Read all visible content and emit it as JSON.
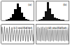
{
  "chart_data": [
    {
      "type": "histogram",
      "title": "(a)",
      "color": "#000000",
      "tick_labels": false,
      "bins": [
        0,
        1,
        2,
        3,
        4,
        5,
        6,
        7,
        8,
        9,
        10,
        11,
        12,
        13,
        14,
        15
      ],
      "values": [
        0,
        0,
        1,
        2,
        4,
        8,
        15,
        22,
        18,
        10,
        5,
        2,
        1,
        0,
        0
      ],
      "xlim": [
        0,
        15
      ],
      "ylim": [
        0,
        25
      ]
    },
    {
      "type": "histogram",
      "title": "(b)",
      "color": "#111111",
      "tick_labels": false,
      "bins": [
        0,
        1,
        2,
        3,
        4,
        5,
        6,
        7,
        8,
        9,
        10,
        11,
        12,
        13,
        14,
        15
      ],
      "values": [
        0,
        1,
        2,
        5,
        12,
        24,
        16,
        8,
        4,
        3,
        2,
        1,
        1,
        0,
        0
      ],
      "xlim": [
        0,
        15
      ],
      "ylim": [
        0,
        25
      ]
    },
    {
      "type": "line",
      "title": "(c) oscillation",
      "color": "#444444",
      "tick_labels": false,
      "x": [
        0,
        1,
        2,
        3,
        4,
        5,
        6,
        7,
        8,
        9,
        10,
        11,
        12,
        13,
        14,
        15,
        16,
        17,
        18,
        19,
        20,
        21,
        22,
        23,
        24,
        25,
        26,
        27,
        28,
        29,
        30,
        31,
        32,
        33,
        34,
        35,
        36,
        37,
        38,
        39,
        40,
        41,
        42,
        43,
        44,
        45,
        46,
        47,
        48,
        49,
        50,
        51,
        52
      ],
      "values": [
        0,
        0.9,
        0,
        -0.9,
        0,
        0.95,
        0,
        -0.85,
        0,
        0.8,
        0,
        -0.9,
        0,
        0.92,
        0,
        -0.95,
        0,
        0.85,
        0,
        -0.8,
        0,
        0.9,
        0,
        -0.9,
        0,
        0.95,
        0,
        -0.88,
        0,
        0.82,
        0,
        -0.92,
        0,
        0.9,
        0,
        -0.85,
        0,
        0.93,
        0,
        -0.9,
        0,
        0.88,
        0,
        -0.94,
        0,
        0.9,
        0,
        -0.82,
        0,
        0.95,
        0,
        -0.9,
        0
      ],
      "xlim": [
        0,
        52
      ],
      "ylim": [
        -1.2,
        1.2
      ]
    },
    {
      "type": "line",
      "title": "(d) oscillation",
      "color": "#666666",
      "tick_labels": false,
      "x": [
        0,
        1,
        2,
        3,
        4,
        5,
        6,
        7,
        8,
        9,
        10,
        11,
        12,
        13,
        14,
        15,
        16,
        17,
        18,
        19,
        20,
        21,
        22,
        23,
        24,
        25,
        26,
        27,
        28,
        29,
        30,
        31,
        32,
        33,
        34,
        35,
        36,
        37,
        38,
        39,
        40,
        41,
        42,
        43,
        44,
        45,
        46,
        47,
        48,
        49,
        50,
        51,
        52,
        53,
        54,
        55,
        56,
        57,
        58,
        59,
        60
      ],
      "values": [
        0.85,
        0.05,
        -0.8,
        0.9,
        0,
        -0.85,
        0.8,
        0.1,
        -0.9,
        0.88,
        -0.05,
        -0.82,
        0.92,
        0,
        -0.86,
        0.84,
        0.05,
        -0.9,
        0.9,
        -0.1,
        -0.8,
        0.86,
        0,
        -0.88,
        0.8,
        0.05,
        -0.92,
        0.9,
        0,
        -0.84,
        0.87,
        -0.05,
        -0.9,
        0.93,
        0.1,
        -0.8,
        0.82,
        0,
        -0.86,
        0.9,
        0.05,
        -0.9,
        0.85,
        -0.05,
        -0.83,
        0.88,
        0,
        -0.88,
        0.92,
        0.05,
        -0.85,
        0.8,
        0,
        -0.9,
        0.9,
        -0.05,
        -0.82,
        0.86,
        0.05,
        -0.88,
        0.85
      ],
      "xlim": [
        0,
        60
      ],
      "ylim": [
        -1.2,
        1.2
      ]
    }
  ]
}
